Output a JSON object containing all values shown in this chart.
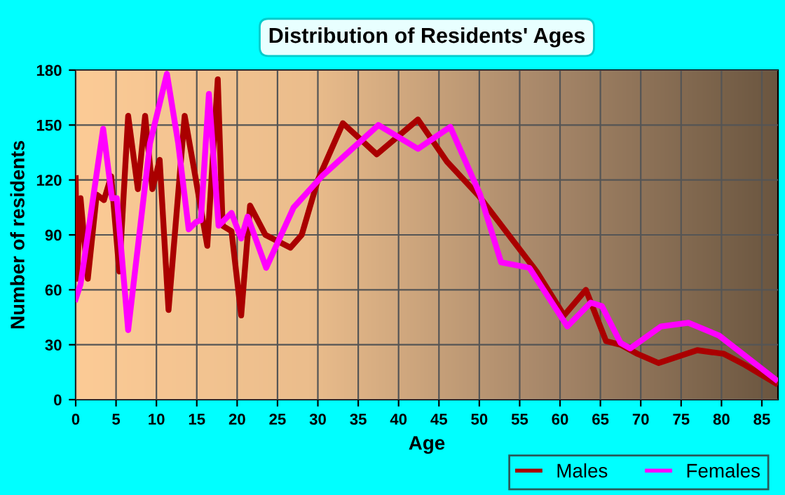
{
  "chart_data": {
    "type": "line",
    "title": "Distribution of Residents' Ages",
    "xlabel": "Age",
    "ylabel": "Number of residents",
    "xlim": [
      0,
      87
    ],
    "xticks": [
      0,
      5,
      10,
      15,
      20,
      25,
      30,
      35,
      40,
      45,
      50,
      55,
      60,
      65,
      70,
      75,
      80,
      85
    ],
    "ylim": [
      0,
      180
    ],
    "yticks": [
      0,
      30,
      60,
      90,
      120,
      150,
      180
    ],
    "grid": true,
    "legend": "bottom right",
    "series": [
      {
        "name": "Males",
        "color": "#aa0000",
        "x": [
          0,
          0.15,
          0.6,
          1.5,
          2.6,
          3.5,
          4.4,
          5.4,
          6.5,
          7.7,
          8.6,
          9.5,
          10.4,
          11.5,
          13.5,
          14.7,
          16.3,
          17.6,
          18.2,
          19.3,
          20.5,
          21.6,
          23.5,
          26.6,
          28,
          30,
          33.1,
          37.3,
          42.4,
          46,
          50,
          57.1,
          60.5,
          63.2,
          65.7,
          67.5,
          69.6,
          72.2,
          77,
          80.3,
          82.9,
          86.7
        ],
        "values": [
          121,
          66,
          110,
          66,
          112,
          109,
          122,
          70,
          155,
          115,
          155,
          115,
          131,
          49,
          155,
          125,
          84,
          175,
          95,
          92,
          46,
          106,
          90,
          83,
          90,
          120,
          151,
          134,
          153,
          130,
          111,
          70,
          46,
          60,
          32,
          30,
          25,
          20,
          27,
          25,
          19,
          9
        ]
      },
      {
        "name": "Females",
        "color": "#ff00ff",
        "x": [
          0,
          0.6,
          1.5,
          3.4,
          4.5,
          5.1,
          6.5,
          9.2,
          11.3,
          12.7,
          14,
          14.9,
          15.5,
          16.5,
          17.7,
          19.3,
          20.5,
          21.3,
          23.6,
          27,
          30.5,
          37.5,
          42.4,
          46.4,
          50.1,
          52.7,
          56.2,
          60.9,
          63.8,
          65.2,
          67.5,
          68.7,
          72.5,
          75.9,
          79.7,
          86.7
        ],
        "values": [
          55,
          63,
          90,
          148,
          110,
          110,
          38,
          140,
          178,
          140,
          93,
          97,
          98,
          167,
          95,
          102,
          88,
          100,
          72,
          105,
          122,
          150,
          137,
          149,
          112,
          75,
          72,
          40,
          53,
          51,
          31,
          28,
          40,
          42,
          35,
          11
        ]
      }
    ]
  }
}
